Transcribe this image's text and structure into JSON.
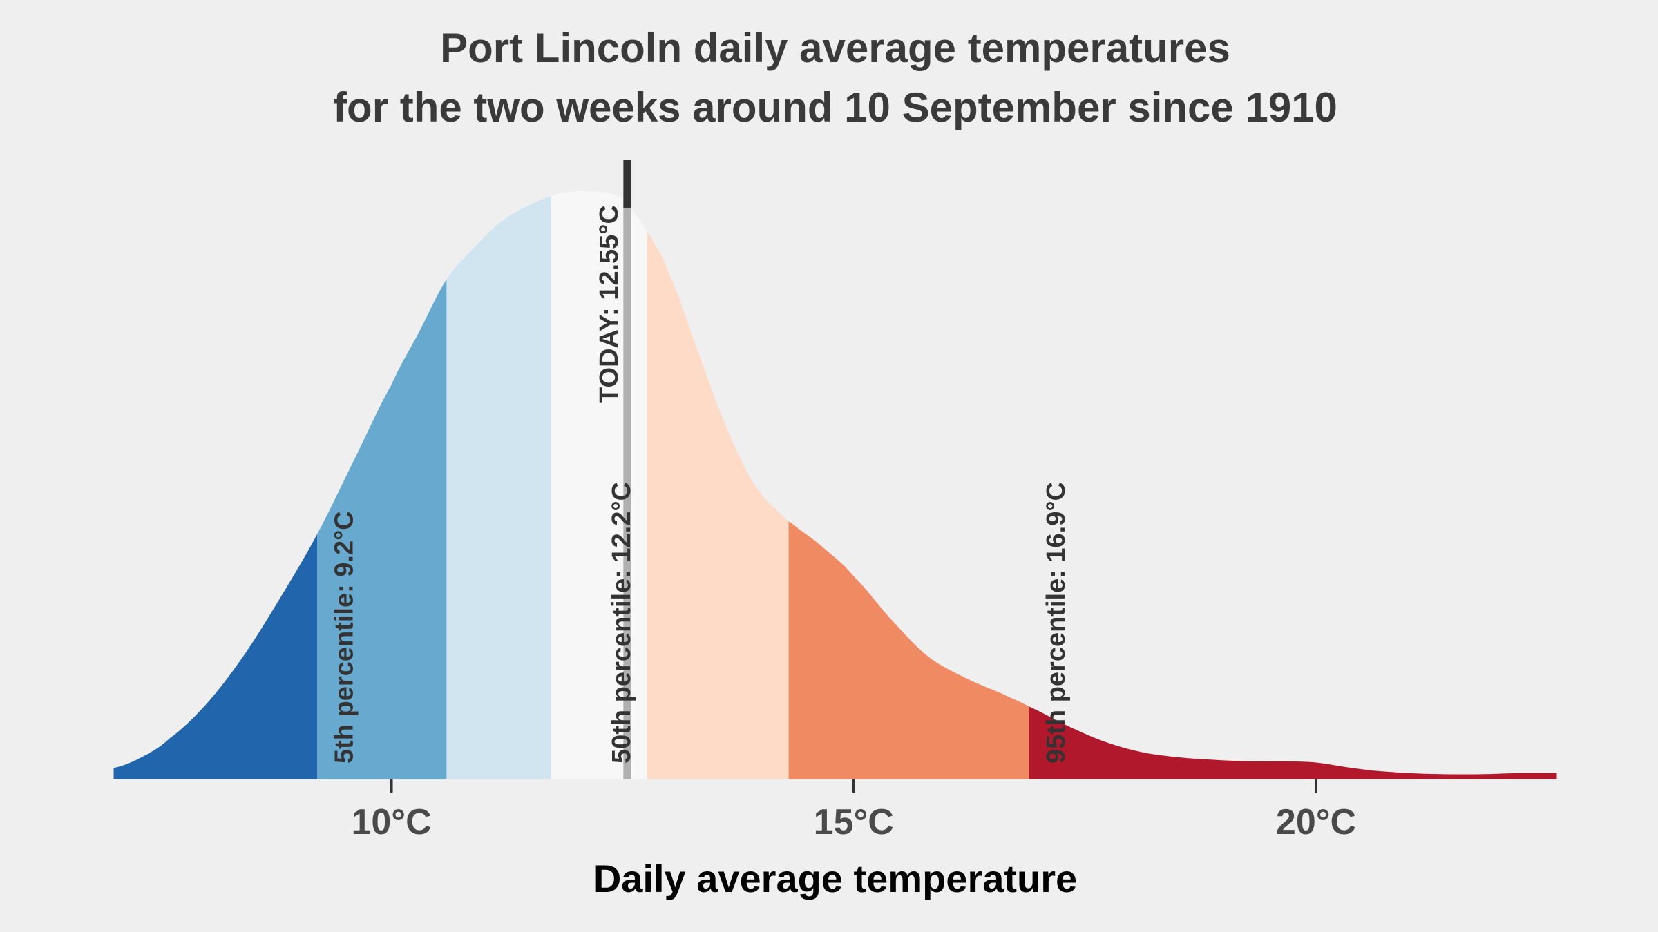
{
  "chart_data": {
    "type": "area",
    "title_lines": [
      "Port Lincoln daily average temperatures",
      "for the two weeks around 10 September since 1910"
    ],
    "xlabel": "Daily average temperature",
    "ylabel": "",
    "xlim": [
      7.0,
      22.6
    ],
    "x_ticks": [
      {
        "value": 10,
        "label": "10°C"
      },
      {
        "value": 15,
        "label": "15°C"
      },
      {
        "value": 20,
        "label": "20°C"
      }
    ],
    "density": {
      "x": [
        7.0,
        7.3,
        7.6,
        8.0,
        8.4,
        8.8,
        9.2,
        9.6,
        10.0,
        10.3,
        10.6,
        10.9,
        11.2,
        11.5,
        11.8,
        12.0,
        12.2,
        12.4,
        12.55,
        12.8,
        13.0,
        13.3,
        13.6,
        13.9,
        14.2,
        14.4,
        14.7,
        15.0,
        15.4,
        15.8,
        16.2,
        16.6,
        16.9,
        17.3,
        17.7,
        18.1,
        18.5,
        18.9,
        19.3,
        19.7,
        20.0,
        20.3,
        20.6,
        21.0,
        21.4,
        21.8,
        22.2,
        22.6
      ],
      "y": [
        0.02,
        0.04,
        0.075,
        0.14,
        0.23,
        0.34,
        0.46,
        0.6,
        0.74,
        0.84,
        0.94,
        1.0,
        1.05,
        1.08,
        1.1,
        1.105,
        1.105,
        1.1,
        1.08,
        1.02,
        0.95,
        0.81,
        0.67,
        0.56,
        0.5,
        0.47,
        0.43,
        0.38,
        0.3,
        0.23,
        0.19,
        0.16,
        0.135,
        0.1,
        0.07,
        0.05,
        0.04,
        0.035,
        0.032,
        0.032,
        0.03,
        0.022,
        0.015,
        0.01,
        0.008,
        0.008,
        0.01,
        0.01
      ]
    },
    "bands": [
      {
        "from": 7.0,
        "to": 9.2,
        "color": "#2166ac"
      },
      {
        "from": 9.2,
        "to": 10.6,
        "color": "#67a9cf"
      },
      {
        "from": 10.6,
        "to": 11.73,
        "color": "#d1e5f0"
      },
      {
        "from": 11.73,
        "to": 12.77,
        "color": "#f7f7f7"
      },
      {
        "from": 12.77,
        "to": 14.3,
        "color": "#fddbc7"
      },
      {
        "from": 14.3,
        "to": 16.9,
        "color": "#ef8a62"
      },
      {
        "from": 16.9,
        "to": 22.6,
        "color": "#b2182b"
      }
    ],
    "percentiles": [
      {
        "value": 9.2,
        "label": "5th percentile:  9.2°C"
      },
      {
        "value": 12.2,
        "label": "50th percentile: 12.2°C"
      },
      {
        "value": 16.9,
        "label": "95th percentile:  16.9°C"
      }
    ],
    "today": {
      "value": 12.55,
      "label": "TODAY:  12.55°C"
    },
    "colors": {
      "background": "#efefef",
      "today_line": "#333333",
      "median_line": "#b0b0b0",
      "text": "#333333"
    }
  }
}
